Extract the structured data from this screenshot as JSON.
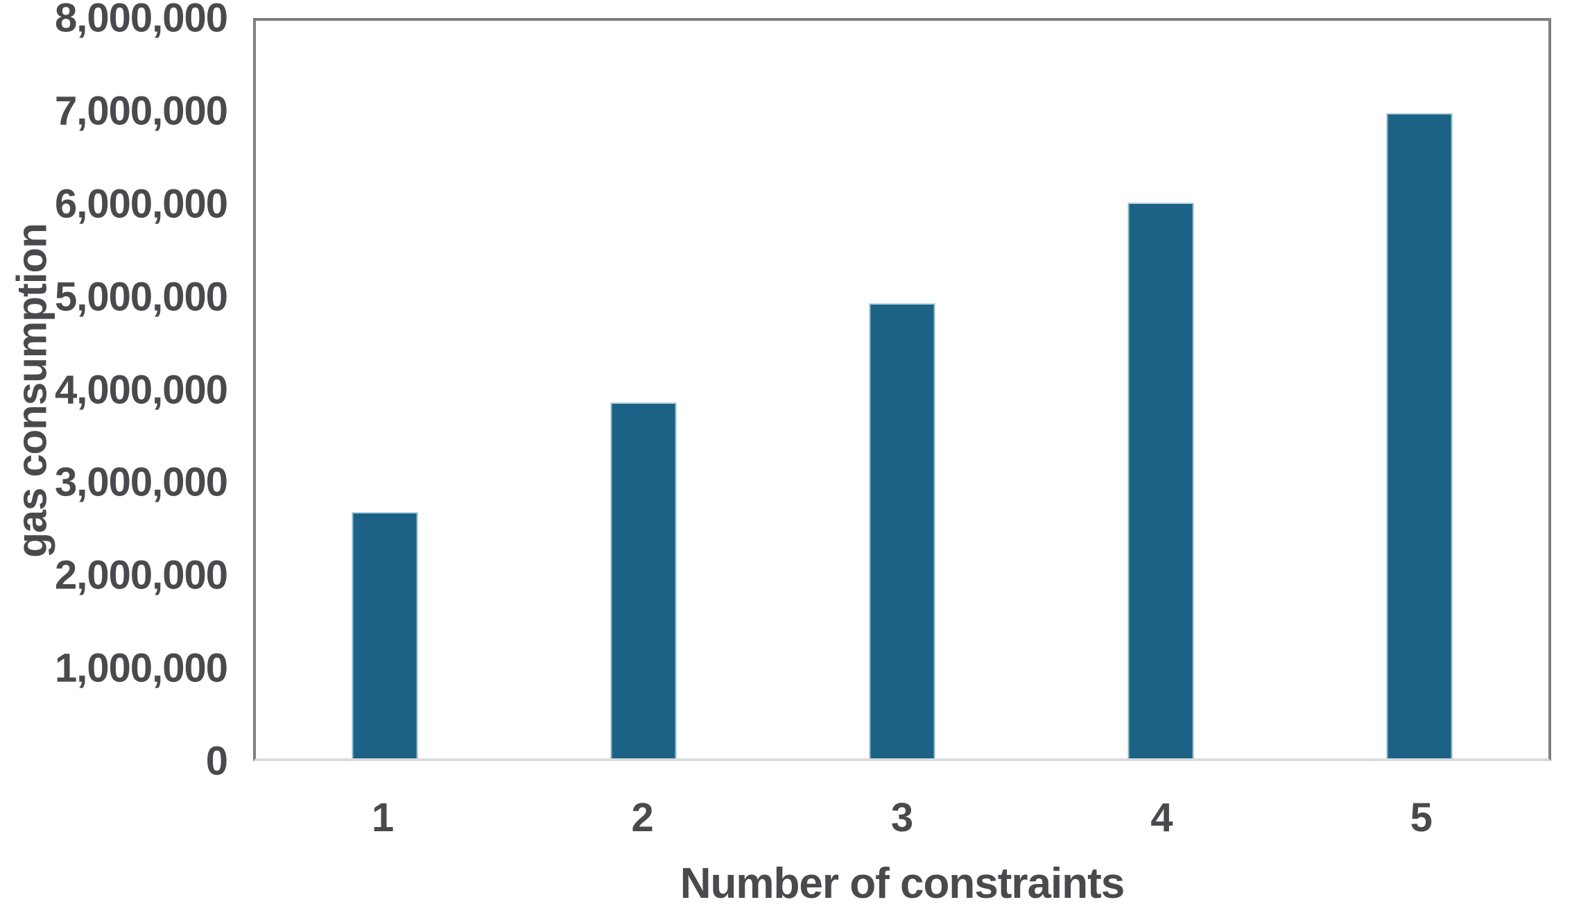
{
  "chart_data": {
    "type": "bar",
    "title": "",
    "xlabel": "Number of constraints",
    "ylabel": "gas consumption",
    "categories": [
      "1",
      "2",
      "3",
      "4",
      "5"
    ],
    "values": [
      2670000,
      3860000,
      4940000,
      6030000,
      7000000
    ],
    "ylim": [
      0,
      8000000
    ],
    "y_ticks": [
      0,
      1000000,
      2000000,
      3000000,
      4000000,
      5000000,
      6000000,
      7000000,
      8000000
    ],
    "y_tick_labels": [
      "0",
      "1,000,000",
      "2,000,000",
      "3,000,000",
      "4,000,000",
      "5,000,000",
      "6,000,000",
      "7,000,000",
      "8,000,000"
    ],
    "grid": false,
    "legend": "none",
    "bar_color": "#1b6286",
    "bar_edge_color": "#bed6e4",
    "plot_border_color": "#7f7f7f",
    "baseline_color": "#dcdcdc",
    "text_color": "#49494e",
    "background_color": "#ffffff"
  }
}
